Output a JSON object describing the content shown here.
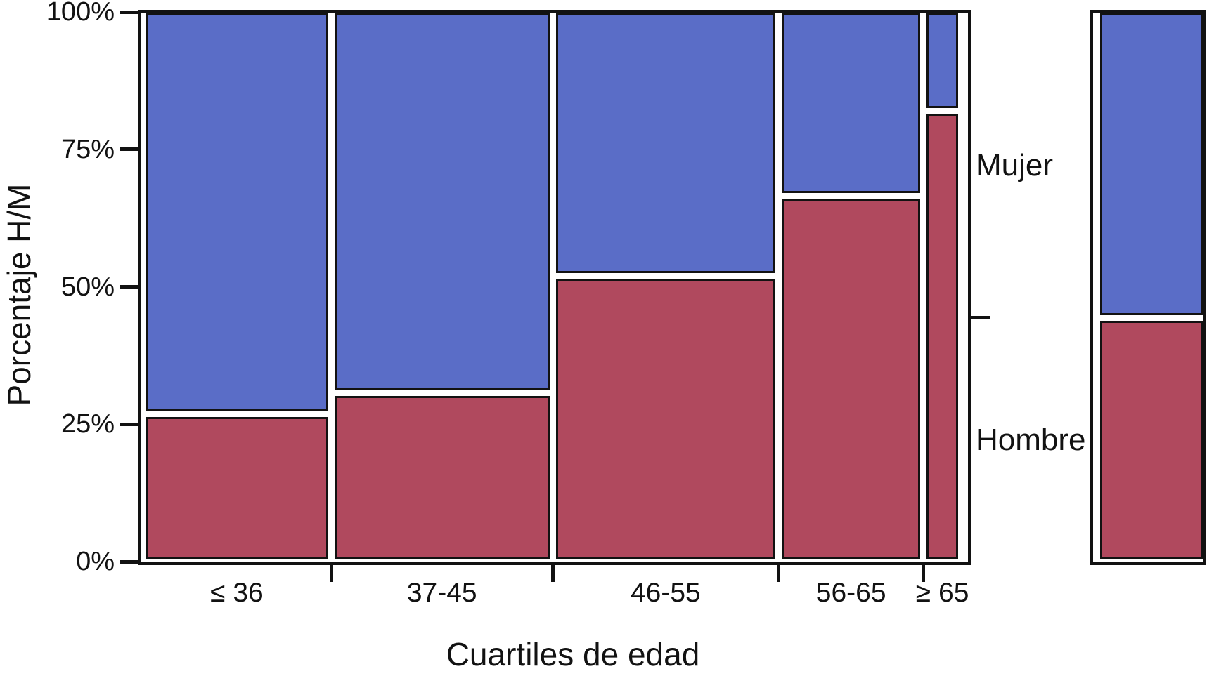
{
  "chart_data": {
    "type": "mosaic",
    "title": "",
    "xlabel": "Cuartiles de edad",
    "ylabel": "Porcentaje H/M",
    "x_categories": [
      "≤ 36",
      "37-45",
      "46-55",
      "56-65",
      "≥ 65"
    ],
    "y_tick_labels": [
      "100%",
      "75%",
      "50%",
      "25%",
      "0%"
    ],
    "y_tick_values": [
      100,
      75,
      50,
      25,
      0
    ],
    "axis_range": {
      "ymin": 0,
      "ymax": 100,
      "unit": "%"
    },
    "row_labels": [
      "Mujer",
      "Hombre"
    ],
    "series": [
      {
        "name": "Mujer",
        "color": "#5a6dc7",
        "values_pct": [
          74,
          70,
          48,
          33,
          17
        ]
      },
      {
        "name": "Hombre",
        "color": "#b0495e",
        "values_pct": [
          26,
          30,
          52,
          67,
          83
        ]
      }
    ],
    "column_widths_pct": [
      23.2,
      27.3,
      27.9,
      17.6,
      4.0
    ],
    "marginal_totals": {
      "Mujer": 56,
      "Hombre": 44
    },
    "colors": {
      "mujer_blue": "#5a6dc7",
      "hombre_red": "#b0495e",
      "border_black": "#121212",
      "background": "#ffffff"
    },
    "legend_position": "right",
    "grid": false
  }
}
